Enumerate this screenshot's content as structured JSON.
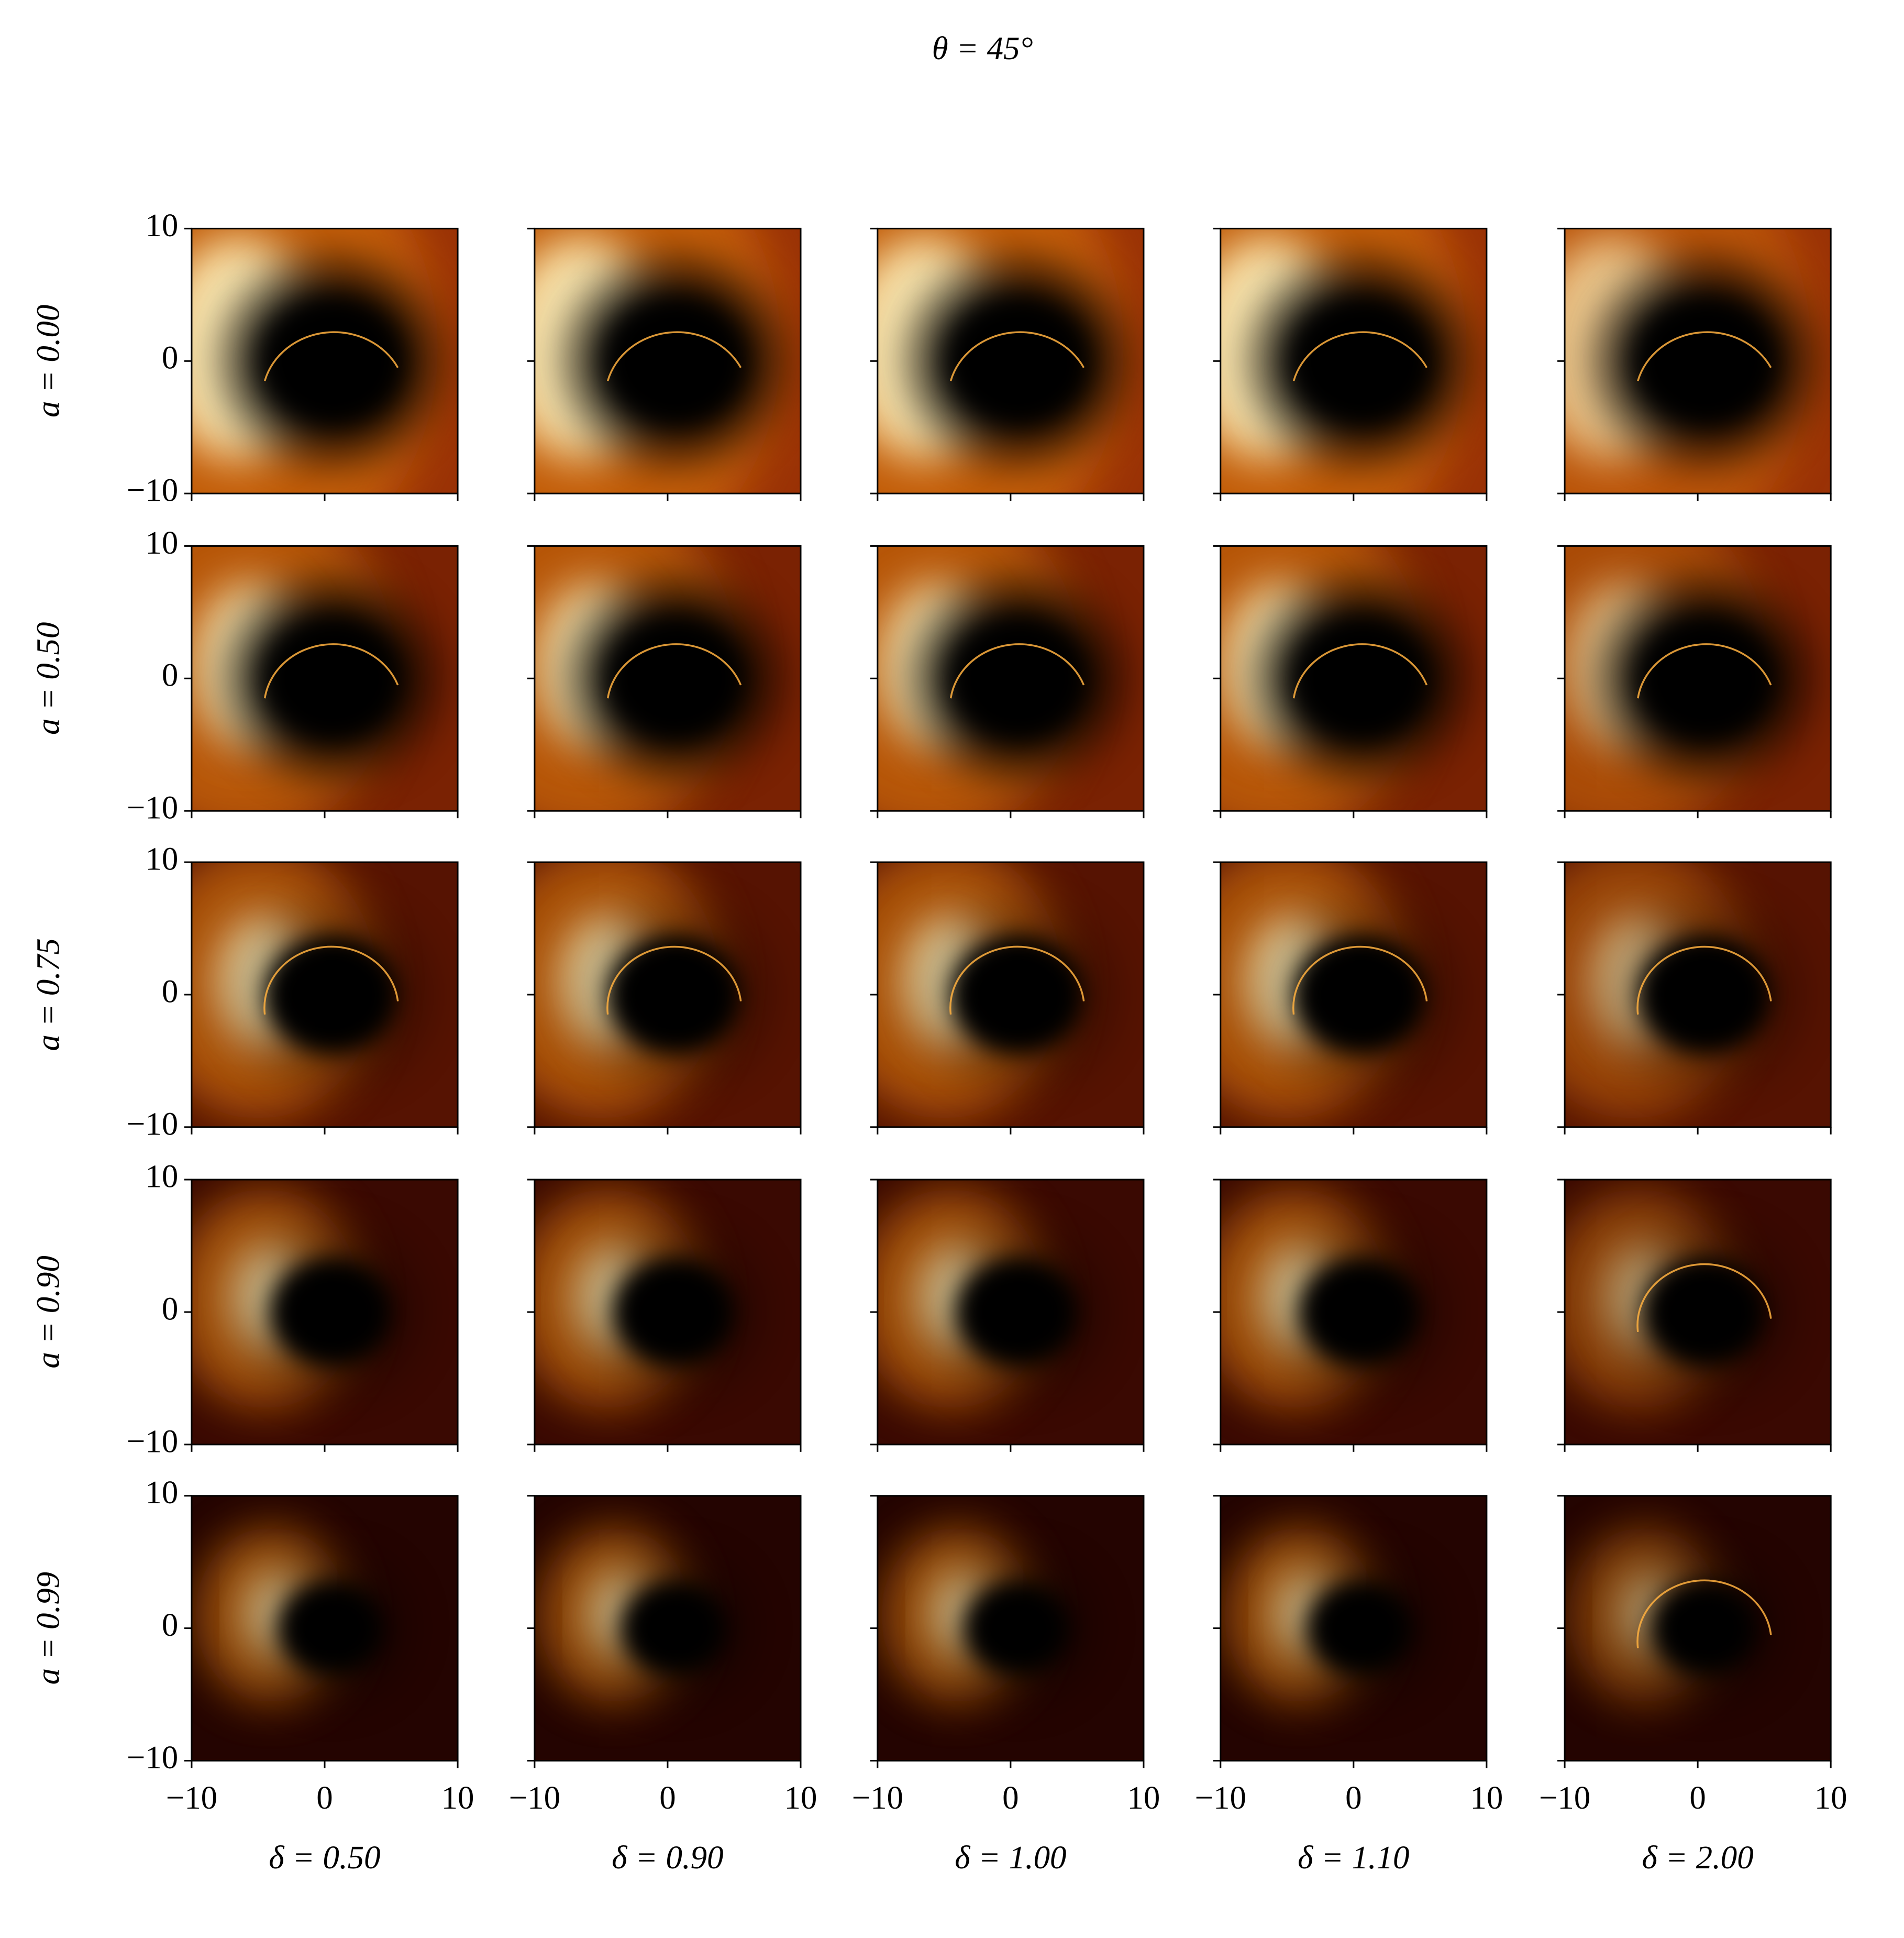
{
  "chart_data": {
    "type": "image-grid",
    "title": "θ = 45°",
    "rows": [
      "a = 0.00",
      "a = 0.50",
      "a = 0.75",
      "a = 0.90",
      "a = 0.99"
    ],
    "columns": [
      "δ = 0.50",
      "δ = 0.90",
      "δ = 1.00",
      "δ = 1.10",
      "δ = 2.00"
    ],
    "xlim": [
      -10,
      10
    ],
    "ylim": [
      -10,
      10
    ],
    "xticks": [
      {
        "value": -10,
        "label": "−10"
      },
      0,
      10
    ],
    "yticks": [
      {
        "value": -10,
        "label": "−10"
      },
      0,
      10
    ]
  }
}
